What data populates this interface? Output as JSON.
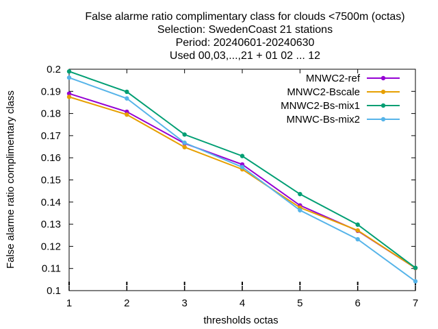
{
  "chart_data": {
    "type": "line",
    "title_lines": [
      "False alarme ratio complimentary class  for clouds <7500m (octas)",
      "Selection: SwedenCoast     21 stations",
      "Period: 20240601-20240630",
      "Used 00,03,...,21 + 01 02 ... 12"
    ],
    "xlabel": "thresholds octas",
    "ylabel": "False alarme ratio complimentary class",
    "x": [
      1,
      2,
      3,
      4,
      5,
      6,
      7
    ],
    "xlim": [
      1,
      7
    ],
    "ylim": [
      0.1,
      0.2
    ],
    "xticks": [
      "1",
      "2",
      "3",
      "4",
      "5",
      "6",
      "7"
    ],
    "yticks": [
      "0.1",
      "0.11",
      "0.12",
      "0.13",
      "0.14",
      "0.15",
      "0.16",
      "0.17",
      "0.18",
      "0.19",
      "0.2"
    ],
    "grid": false,
    "legend_position": "top-right",
    "series": [
      {
        "name": "MNWC2-ref",
        "color": "#9400d3",
        "values": [
          0.189,
          0.1808,
          0.1665,
          0.157,
          0.1385,
          0.127,
          0.1102
        ]
      },
      {
        "name": "MNWC2-Bscale",
        "color": "#e69f00",
        "values": [
          0.1875,
          0.1795,
          0.1648,
          0.1548,
          0.1375,
          0.1272,
          0.1102
        ]
      },
      {
        "name": "MNWC2-Bs-mix1",
        "color": "#009e73",
        "values": [
          0.199,
          0.1898,
          0.1705,
          0.1608,
          0.1436,
          0.1298,
          0.1103
        ]
      },
      {
        "name": "MNWC-Bs-mix2",
        "color": "#56b4e9",
        "values": [
          0.1962,
          0.1868,
          0.1668,
          0.1558,
          0.1363,
          0.1232,
          0.1042
        ]
      }
    ]
  }
}
